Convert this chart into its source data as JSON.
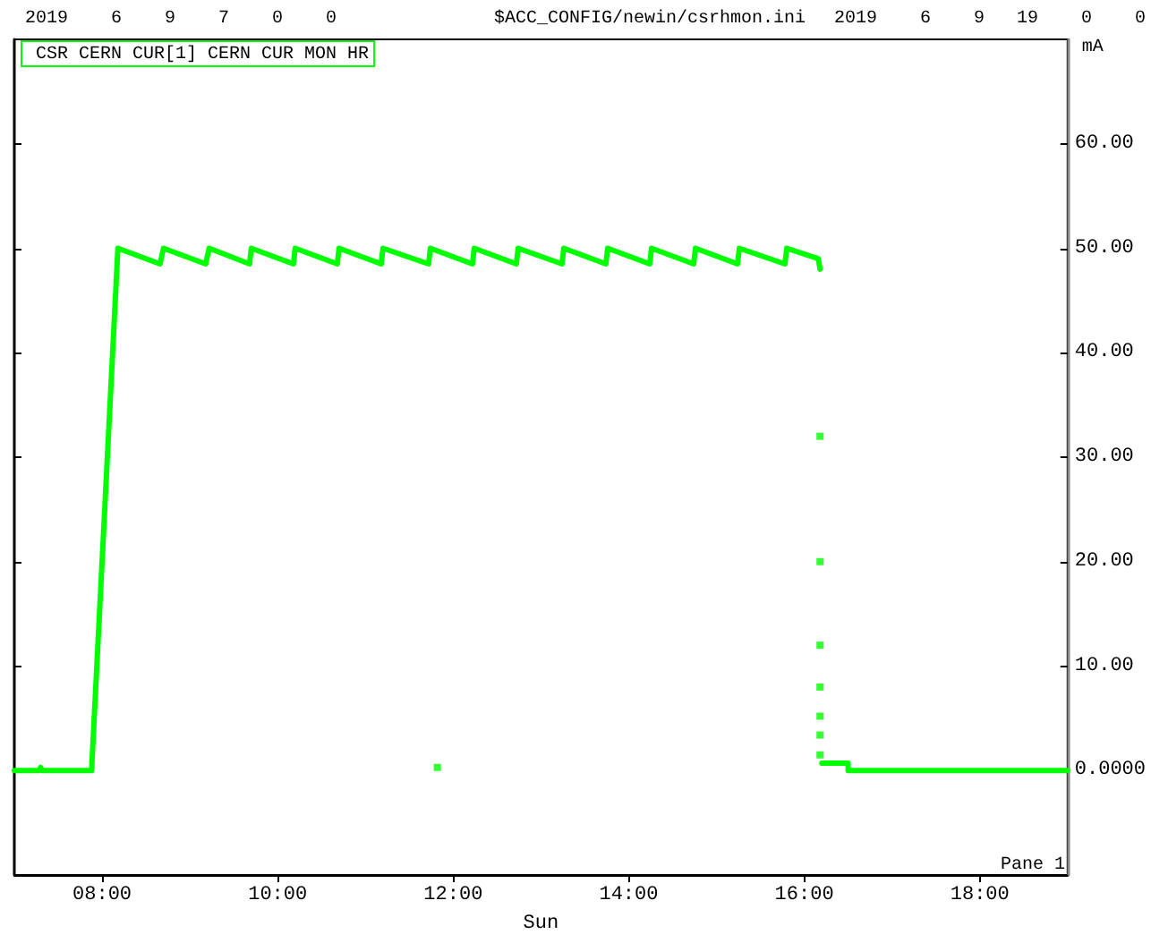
{
  "chart_data": {
    "type": "line",
    "xlabel": "Sun",
    "ylabel": "mA",
    "annotations": [
      "2019    6    9    7    0    0",
      "$ACC_CONFIG/newin/csrhmon.ini",
      "2019    6    9   19    0    0",
      "Pane 1"
    ],
    "xlim": [
      7,
      19
    ],
    "ylim": [
      -10,
      70
    ],
    "xticks": [
      {
        "value": 8,
        "label": "08:00"
      },
      {
        "value": 10,
        "label": "10:00"
      },
      {
        "value": 12,
        "label": "12:00"
      },
      {
        "value": 14,
        "label": "14:00"
      },
      {
        "value": 16,
        "label": "16:00"
      },
      {
        "value": 18,
        "label": "18:00"
      }
    ],
    "yticks": [
      {
        "value": 0,
        "label": "0.0000"
      },
      {
        "value": 10,
        "label": "10.00"
      },
      {
        "value": 20,
        "label": "20.00"
      },
      {
        "value": 30,
        "label": "30.00"
      },
      {
        "value": 40,
        "label": "40.00"
      },
      {
        "value": 50,
        "label": "50.00"
      },
      {
        "value": 60,
        "label": "60.00"
      }
    ],
    "tick_labels": "xy",
    "grid": false,
    "legend": "top left",
    "marker": "none",
    "line_style": "solid",
    "series": [
      {
        "name": "CSR CERN CUR[1] CERN CUR MON HR",
        "color": "#00ff00",
        "x": [
          7,
          7.28,
          7.3,
          7.32,
          7.88,
          8.18,
          8.66,
          8.7,
          9.18,
          9.22,
          9.68,
          9.7,
          10.18,
          10.2,
          10.68,
          10.7,
          11.18,
          11.2,
          11.72,
          11.74,
          12.22,
          12.24,
          12.72,
          12.74,
          13.24,
          13.26,
          13.74,
          13.76,
          14.24,
          14.26,
          14.74,
          14.76,
          15.24,
          15.26,
          15.78,
          15.8,
          16.16,
          16.18,
          16.19,
          16.2,
          16.5,
          16.5,
          19
        ],
        "values": [
          0,
          0,
          0.3,
          0,
          0,
          50,
          48.5,
          50,
          48.5,
          50,
          48.5,
          50,
          48.5,
          50,
          48.5,
          50,
          48.5,
          50,
          48.5,
          50,
          48.5,
          50,
          48.5,
          50,
          48.5,
          50,
          48.5,
          50,
          48.5,
          50,
          48.5,
          50,
          48.5,
          50,
          48.5,
          50,
          49,
          48,
          null,
          0.7,
          0.7,
          0,
          0
        ]
      },
      {
        "color": "#00ff00",
        "type": "scatter",
        "marker": "square",
        "x": [
          11.82,
          16.18,
          16.18,
          16.18,
          16.18,
          16.18,
          16.18,
          16.18
        ],
        "values": [
          0.3,
          32,
          20,
          12,
          8,
          5.2,
          3.4,
          1.5
        ]
      }
    ]
  }
}
